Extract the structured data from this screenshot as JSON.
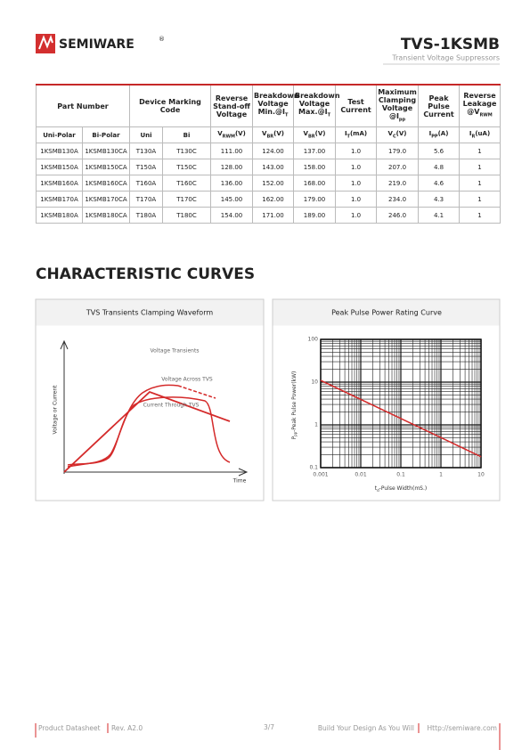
{
  "header": {
    "brand": "SEMIWARE",
    "registered": "®",
    "part": "TVS-1KSMB",
    "subtitle": "Transient Voltage Suppressors"
  },
  "table": {
    "head": [
      [
        "Part Number"
      ],
      [
        "Device Marking Code"
      ],
      [
        "Reverse Stand-off Voltage"
      ],
      [
        "Breakdown Voltage Min.@I",
        "T"
      ],
      [
        "Breakdown Voltage Max.@I",
        "T"
      ],
      [
        "Test Current"
      ],
      [
        "Maximum Clamping Voltage @I",
        "pp"
      ],
      [
        "Peak Pulse Current"
      ],
      [
        "Reverse Leakage @V",
        "RWM"
      ]
    ],
    "subhead": [
      [
        "Uni-Polar"
      ],
      [
        "Bi-Polar"
      ],
      [
        "Uni"
      ],
      [
        "Bi"
      ],
      [
        "V",
        "RWM",
        "(V)"
      ],
      [
        "V",
        "BR",
        "(V)"
      ],
      [
        "V",
        "BR",
        "(V)"
      ],
      [
        "I",
        "T",
        "(mA)"
      ],
      [
        "V",
        "C",
        "(V)"
      ],
      [
        "I",
        "PP",
        "(A)"
      ],
      [
        "I",
        "R",
        "(uA)"
      ]
    ],
    "rows": [
      [
        "1KSMB130A",
        "1KSMB130CA",
        "T130A",
        "T130C",
        "111.00",
        "124.00",
        "137.00",
        "1.0",
        "179.0",
        "5.6",
        "1"
      ],
      [
        "1KSMB150A",
        "1KSMB150CA",
        "T150A",
        "T150C",
        "128.00",
        "143.00",
        "158.00",
        "1.0",
        "207.0",
        "4.8",
        "1"
      ],
      [
        "1KSMB160A",
        "1KSMB160CA",
        "T160A",
        "T160C",
        "136.00",
        "152.00",
        "168.00",
        "1.0",
        "219.0",
        "4.6",
        "1"
      ],
      [
        "1KSMB170A",
        "1KSMB170CA",
        "T170A",
        "T170C",
        "145.00",
        "162.00",
        "179.00",
        "1.0",
        "234.0",
        "4.3",
        "1"
      ],
      [
        "1KSMB180A",
        "1KSMB180CA",
        "T180A",
        "T180C",
        "154.00",
        "171.00",
        "189.00",
        "1.0",
        "246.0",
        "4.1",
        "1"
      ]
    ]
  },
  "section_title": "CHARACTERISTIC CURVES",
  "waveform": {
    "title": "TVS Transients Clamping Waveform",
    "labels": [
      "Voltage Transients",
      "Voltage Across TVS",
      "Current Through TVS"
    ],
    "ylabel": "Voltage or Current",
    "xlabel": "Time"
  },
  "chart_data": {
    "type": "line",
    "title": "Peak Pulse Power Rating Curve",
    "xlabel": [
      "t",
      "d",
      "-Pulse Width(mS.)"
    ],
    "ylabel": [
      "P",
      "PP",
      "-Peak Pulse Power(kW)"
    ],
    "x": [
      0.001,
      10
    ],
    "series": [
      {
        "color": "#d42a2a",
        "values": [
          11,
          0.18
        ]
      }
    ],
    "xlim": [
      0.001,
      10
    ],
    "ylim": [
      0.1,
      100
    ],
    "xticks": [
      0.001,
      0.01,
      0.1,
      1,
      10
    ],
    "yticks": [
      0.1,
      1,
      10,
      100
    ],
    "log_x": true,
    "log_y": true,
    "grid": true
  },
  "footer": {
    "left": "Product Datasheet",
    "rev": "Rev. A2.0",
    "page": "3/7",
    "slogan": "Build Your Design As You Will",
    "url": "Http://semiware.com"
  }
}
